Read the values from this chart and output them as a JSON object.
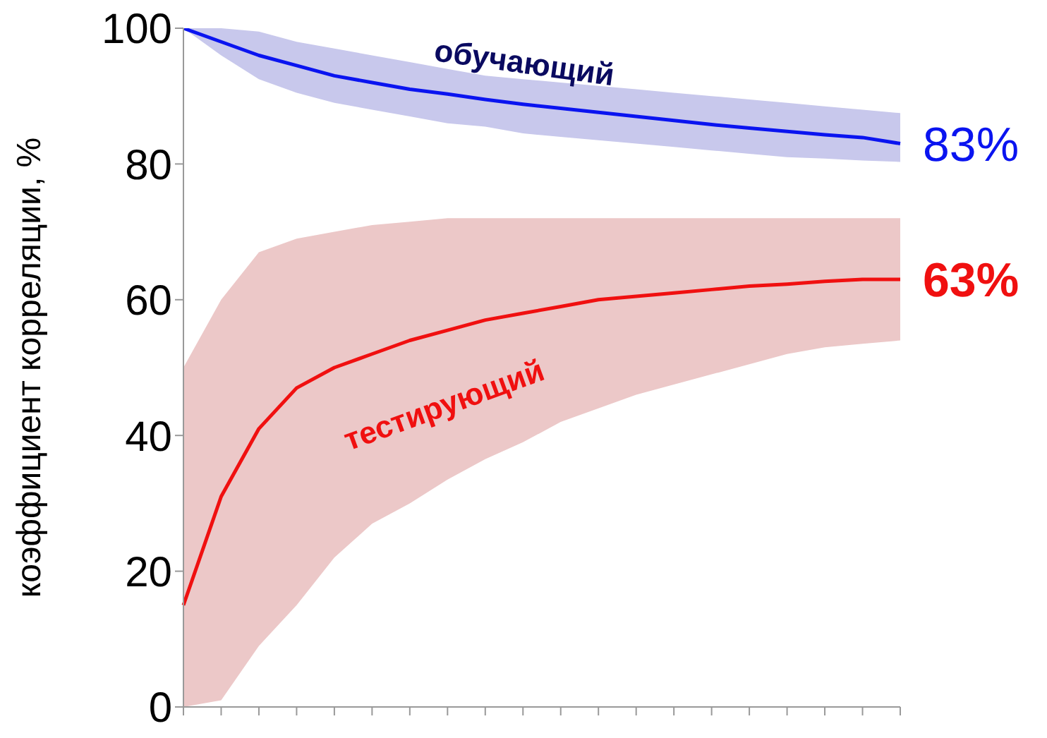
{
  "chart_data": {
    "type": "line",
    "ylabel": "коэффициент корреляции, %",
    "categories": [
      null,
      null,
      null,
      null,
      null,
      null,
      null,
      null,
      null,
      null,
      null,
      null,
      null,
      null,
      null,
      null,
      null,
      null,
      null,
      null
    ],
    "ylim": [
      0,
      100
    ],
    "yticks": [
      0,
      20,
      40,
      60,
      80,
      100
    ],
    "grid": false,
    "legend": false,
    "marker": "none",
    "line_style": "solid",
    "series": [
      {
        "name": "обучающий",
        "color": "#0a14f0",
        "values": [
          100,
          98,
          96,
          94.5,
          93,
          92,
          91,
          90.3,
          89.5,
          88.8,
          88.2,
          87.6,
          87,
          86.4,
          85.8,
          85.3,
          84.8,
          84.3,
          83.9,
          83
        ],
        "lower": [
          100,
          96,
          92.5,
          90.5,
          89,
          88,
          87,
          86,
          85.5,
          84.5,
          84,
          83.5,
          83,
          82.5,
          82,
          81.5,
          81,
          80.8,
          80.5,
          80.3
        ],
        "upper": [
          100,
          100,
          99.5,
          98,
          97,
          96,
          95,
          94,
          93,
          92.5,
          92,
          91.5,
          91,
          90.5,
          90,
          89.5,
          89,
          88.5,
          88,
          87.5
        ],
        "value_labels": [
          null,
          null,
          null,
          null,
          null,
          null,
          null,
          null,
          null,
          null,
          null,
          null,
          null,
          null,
          null,
          null,
          null,
          null,
          null,
          "83%"
        ]
      },
      {
        "name": "тестирующий",
        "color": "#f01010",
        "values": [
          15,
          31,
          41,
          47,
          50,
          52,
          54,
          55.5,
          57,
          58,
          59,
          60,
          60.5,
          61,
          61.5,
          62,
          62.3,
          62.7,
          63,
          63
        ],
        "lower": [
          0,
          1,
          9,
          15,
          22,
          27,
          30,
          33.5,
          36.5,
          39,
          42,
          44,
          46,
          47.5,
          49,
          50.5,
          52,
          53,
          53.5,
          54
        ],
        "upper": [
          50,
          60,
          67,
          69,
          70,
          71,
          71.5,
          72,
          72,
          72,
          72,
          72,
          72,
          72,
          72,
          72,
          72,
          72,
          72,
          72
        ],
        "value_labels": [
          null,
          null,
          null,
          null,
          null,
          null,
          null,
          null,
          null,
          null,
          null,
          null,
          null,
          null,
          null,
          null,
          null,
          null,
          null,
          "63%"
        ]
      }
    ]
  }
}
